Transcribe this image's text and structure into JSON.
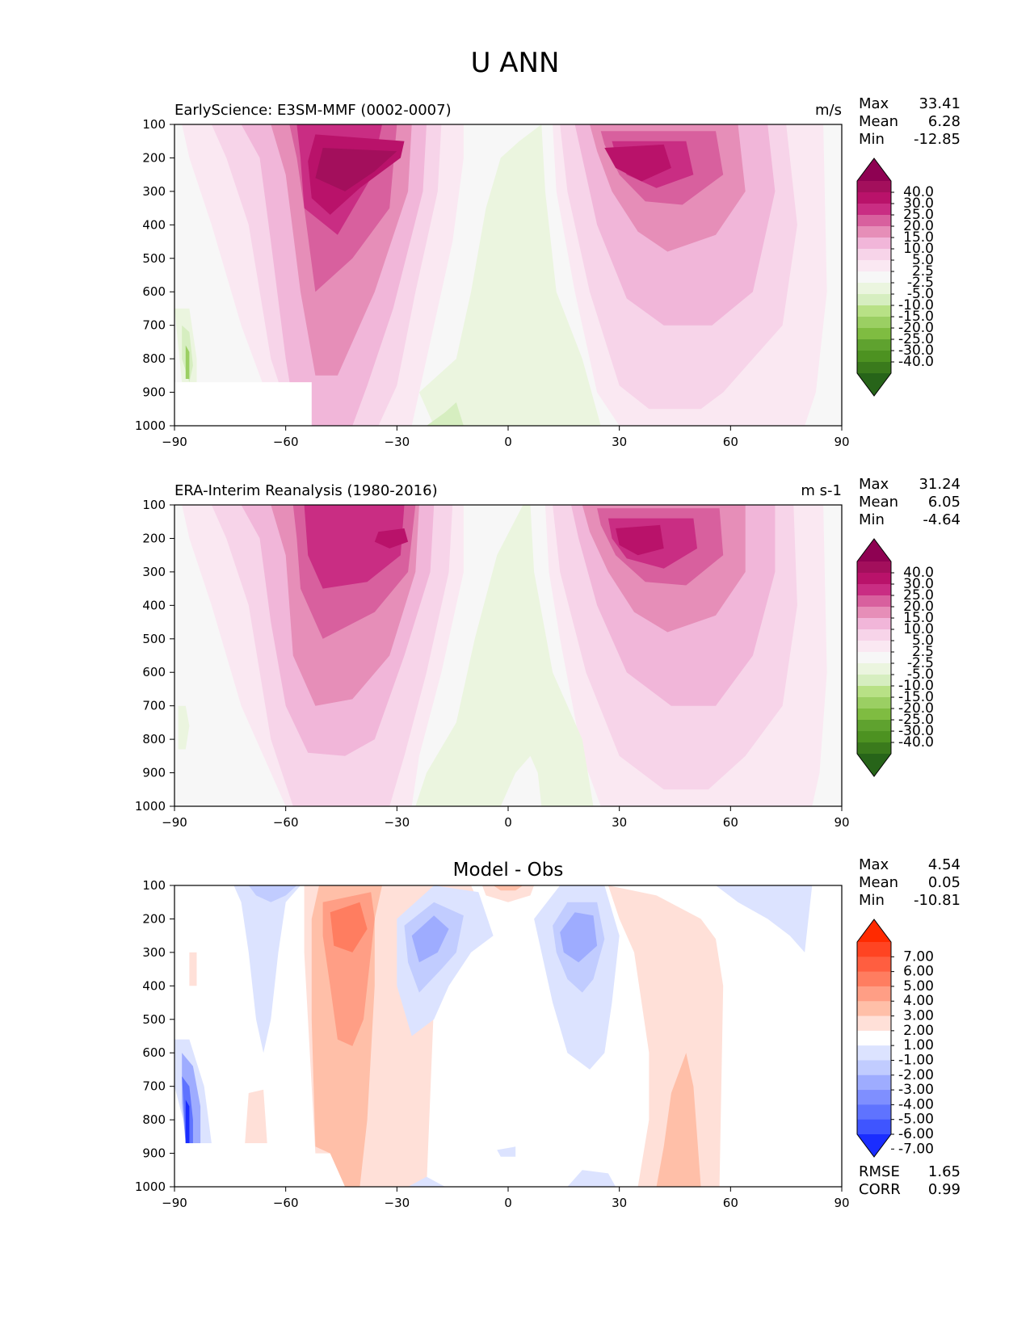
{
  "figure": {
    "title": "U ANN"
  },
  "chart_data": [
    {
      "type": "heatmap",
      "panel": "model",
      "title_left": "EarlyScience: E3SM-MMF (0002-0007)",
      "title_right": "m/s",
      "xlabel": "",
      "ylabel": "",
      "xlim": [
        -90,
        90
      ],
      "ylim": [
        1000,
        100
      ],
      "x_ticks": [
        "−90",
        "−60",
        "−30",
        "0",
        "30",
        "60",
        "90"
      ],
      "y_ticks": [
        "100",
        "200",
        "300",
        "400",
        "500",
        "600",
        "700",
        "800",
        "900",
        "1000"
      ],
      "stats": {
        "labels": [
          "Max",
          "Mean",
          "Min"
        ],
        "values": [
          "33.41",
          "6.28",
          "-12.85"
        ]
      },
      "colorbar": {
        "ticks": [
          "40.0",
          "30.0",
          "25.0",
          "20.0",
          "15.0",
          "10.0",
          "5.0",
          "2.5",
          "-2.5",
          "-5.0",
          "-10.0",
          "-15.0",
          "-20.0",
          "-25.0",
          "-30.0",
          "-40.0"
        ],
        "colors": [
          "#8e0152",
          "#a30f5c",
          "#b9126a",
          "#c92d83",
          "#d8609e",
          "#e68eb8",
          "#f1b6d9",
          "#f7d4e9",
          "#fae8f2",
          "#f7f7f7",
          "#ebf5df",
          "#d6eec0",
          "#b8e186",
          "#9bcf63",
          "#7fbc41",
          "#5fa22f",
          "#4d9221",
          "#3a7a1c",
          "#276419"
        ]
      },
      "features": [
        {
          "name": "sh-jet-core",
          "lat": -40,
          "p": 230,
          "peak_u": 33.41
        },
        {
          "name": "nh-jet-core",
          "lat": 35,
          "p": 220,
          "peak_u": 30
        },
        {
          "name": "tropical-easterlies",
          "lat": -5,
          "p": 600,
          "u": -5
        },
        {
          "name": "antarctic-low-level-easterlies",
          "lat": -87,
          "p": 800,
          "u": -12.85
        }
      ]
    },
    {
      "type": "heatmap",
      "panel": "obs",
      "title_left": "ERA-Interim Reanalysis (1980-2016)",
      "title_right": "m s-1",
      "xlim": [
        -90,
        90
      ],
      "ylim": [
        1000,
        100
      ],
      "x_ticks": [
        "−90",
        "−60",
        "−30",
        "0",
        "30",
        "60",
        "90"
      ],
      "y_ticks": [
        "100",
        "200",
        "300",
        "400",
        "500",
        "600",
        "700",
        "800",
        "900",
        "1000"
      ],
      "stats": {
        "labels": [
          "Max",
          "Mean",
          "Min"
        ],
        "values": [
          "31.24",
          "6.05",
          "-4.64"
        ]
      },
      "colorbar": {
        "ticks": [
          "40.0",
          "30.0",
          "25.0",
          "20.0",
          "15.0",
          "10.0",
          "5.0",
          "2.5",
          "-2.5",
          "-5.0",
          "-10.0",
          "-15.0",
          "-20.0",
          "-25.0",
          "-30.0",
          "-40.0"
        ],
        "colors": [
          "#8e0152",
          "#a30f5c",
          "#b9126a",
          "#c92d83",
          "#d8609e",
          "#e68eb8",
          "#f1b6d9",
          "#f7d4e9",
          "#fae8f2",
          "#f7f7f7",
          "#ebf5df",
          "#d6eec0",
          "#b8e186",
          "#9bcf63",
          "#7fbc41",
          "#5fa22f",
          "#4d9221",
          "#3a7a1c",
          "#276419"
        ]
      },
      "features": [
        {
          "name": "sh-jet-core",
          "lat": -32,
          "p": 210,
          "peak_u": 31.24
        },
        {
          "name": "nh-jet-core",
          "lat": 35,
          "p": 200,
          "peak_u": 30
        },
        {
          "name": "tropical-easterlies",
          "lat": -5,
          "p": 600,
          "u": -4.64
        }
      ]
    },
    {
      "type": "heatmap",
      "panel": "diff",
      "title_center": "Model - Obs",
      "xlim": [
        -90,
        90
      ],
      "ylim": [
        1000,
        100
      ],
      "x_ticks": [
        "−90",
        "−60",
        "−30",
        "0",
        "30",
        "60",
        "90"
      ],
      "y_ticks": [
        "100",
        "200",
        "300",
        "400",
        "500",
        "600",
        "700",
        "800",
        "900",
        "1000"
      ],
      "stats": {
        "labels": [
          "Max",
          "Mean",
          "Min"
        ],
        "values": [
          "4.54",
          "0.05",
          "-10.81"
        ]
      },
      "metrics": {
        "labels": [
          "RMSE",
          "CORR"
        ],
        "values": [
          "1.65",
          "0.99"
        ]
      },
      "colorbar": {
        "ticks": [
          "7.00",
          "6.00",
          "5.00",
          "4.00",
          "3.00",
          "2.00",
          "1.00",
          "-1.00",
          "-2.00",
          "-3.00",
          "-4.00",
          "-5.00",
          "-6.00",
          "-7.00"
        ],
        "colors": [
          "#ff2a00",
          "#ff4422",
          "#ff5e40",
          "#ff7d60",
          "#ff9e85",
          "#ffbfa8",
          "#ffe0d8",
          "#ffffff",
          "#dce3ff",
          "#c1ccff",
          "#9eacff",
          "#7f8fff",
          "#5f73ff",
          "#3f55ff",
          "#1a2dff"
        ]
      },
      "features": [
        {
          "name": "sh-midlat-positive",
          "lat": -45,
          "p": 250,
          "u": 4.54
        },
        {
          "name": "sh-subtropic-negative",
          "lat": -22,
          "p": 250,
          "u": -4
        },
        {
          "name": "nh-subtropic-negative",
          "lat": 22,
          "p": 250,
          "u": -4
        },
        {
          "name": "nh-midlat-positive",
          "lat": 45,
          "p": 700,
          "u": 2
        },
        {
          "name": "antarctic-negative",
          "lat": -87,
          "p": 800,
          "u": -10.81
        }
      ]
    }
  ]
}
